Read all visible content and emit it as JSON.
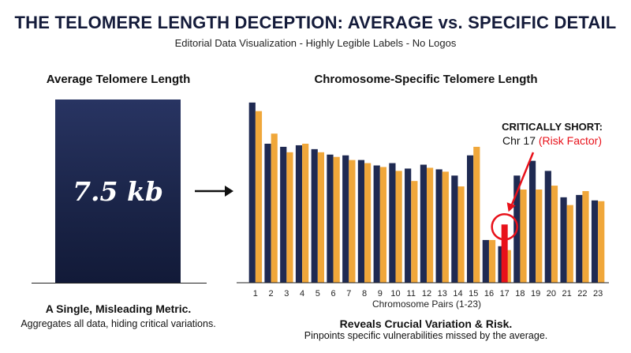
{
  "header": {
    "title": "THE TELOMERE LENGTH DECEPTION: AVERAGE vs. SPECIFIC DETAIL",
    "subtitle": "Editorial Data Visualization - Highly Legible Labels - No Logos"
  },
  "left_panel": {
    "title": "Average Telomere Length",
    "value": "7.5 kb",
    "footer_title": "A Single, Misleading Metric.",
    "footer_text": "Aggregates all data, hiding critical variations."
  },
  "right_panel": {
    "title": "Chromosome-Specific Telomere Length",
    "footer_title": "Reveals Crucial Variation & Risk.",
    "footer_text": "Pinpoints specific vulnerabilities missed by the average."
  },
  "callout": {
    "line1": "CRITICALLY SHORT:",
    "line2_prefix": "Chr 17",
    "line2_highlight": "(Risk Factor)"
  },
  "colors": {
    "navy": "#1f2a52",
    "gold": "#f0a73a",
    "highlight": "#e8111a"
  },
  "chart_data": {
    "type": "bar",
    "xlabel": "Chromosome Pairs (1-23)",
    "categories": [
      "1",
      "2",
      "3",
      "4",
      "5",
      "6",
      "7",
      "8",
      "9",
      "10",
      "11",
      "12",
      "13",
      "14",
      "15",
      "16",
      "17",
      "18",
      "19",
      "20",
      "21",
      "22",
      "23"
    ],
    "series": [
      {
        "values": [
          232,
          179,
          175,
          177,
          172,
          165,
          164,
          158,
          151,
          154,
          147,
          152,
          146,
          138,
          164,
          55,
          47,
          138,
          157,
          144,
          110,
          113,
          106
        ]
      },
      {
        "values": [
          221,
          192,
          168,
          179,
          168,
          162,
          158,
          154,
          149,
          144,
          131,
          148,
          143,
          124,
          175,
          55,
          42,
          120,
          120,
          125,
          100,
          118,
          105
        ]
      }
    ],
    "highlight": {
      "category": "17",
      "value": 75
    },
    "ylim": [
      0,
      240
    ]
  }
}
